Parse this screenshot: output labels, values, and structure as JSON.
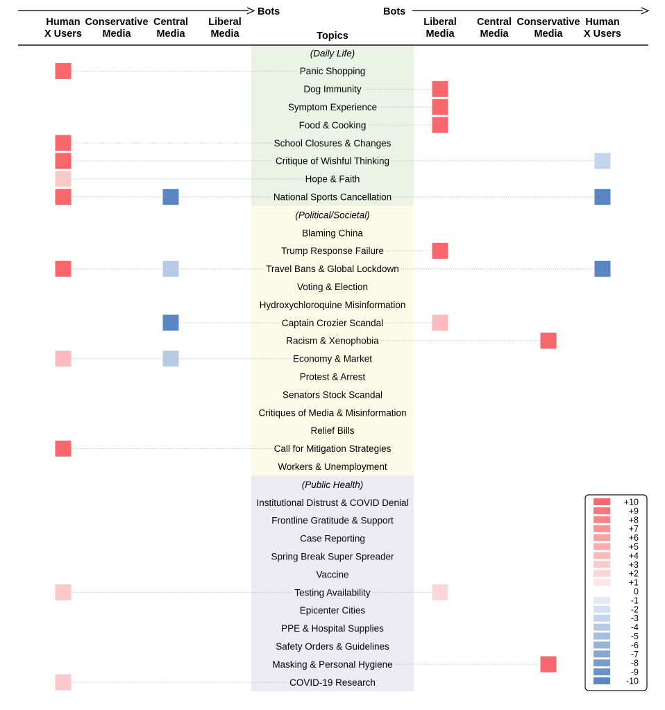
{
  "chart_data": {
    "type": "heatmap",
    "left_arrow_label": "Bots",
    "right_arrow_label": "Bots",
    "topics_header": "Topics",
    "left_columns": [
      "Human\nX Users",
      "Conservative\nMedia",
      "Central\nMedia",
      "Liberal\nMedia"
    ],
    "right_columns": [
      "Liberal\nMedia",
      "Central\nMedia",
      "Conservative\nMedia",
      "Human\nX Users"
    ],
    "sections": [
      {
        "name": "(Daily Life)",
        "color": "#eaf3e6",
        "topics": [
          {
            "name": "Panic Shopping",
            "left": [
              10,
              null,
              null,
              null
            ],
            "right": [
              null,
              null,
              null,
              null
            ]
          },
          {
            "name": "Dog Immunity",
            "left": [
              null,
              null,
              null,
              null
            ],
            "right": [
              10,
              null,
              null,
              null
            ]
          },
          {
            "name": "Symptom Experience",
            "left": [
              null,
              null,
              null,
              null
            ],
            "right": [
              10,
              null,
              null,
              null
            ]
          },
          {
            "name": "Food & Cooking",
            "left": [
              null,
              null,
              null,
              null
            ],
            "right": [
              10,
              null,
              null,
              null
            ]
          },
          {
            "name": "School Closures & Changes",
            "left": [
              10,
              null,
              null,
              null
            ],
            "right": [
              null,
              null,
              null,
              null
            ]
          },
          {
            "name": "Critique of Wishful Thinking",
            "left": [
              10,
              null,
              null,
              null
            ],
            "right": [
              null,
              null,
              null,
              -3
            ]
          },
          {
            "name": "Hope & Faith",
            "left": [
              3,
              null,
              null,
              null
            ],
            "right": [
              null,
              null,
              null,
              null
            ]
          },
          {
            "name": "National Sports Cancellation",
            "left": [
              10,
              null,
              -10,
              null
            ],
            "right": [
              null,
              null,
              null,
              -10
            ]
          }
        ]
      },
      {
        "name": "(Political/Societal)",
        "color": "#fbfbe8",
        "topics": [
          {
            "name": "Blaming China",
            "left": [
              null,
              null,
              null,
              null
            ],
            "right": [
              null,
              null,
              null,
              null
            ]
          },
          {
            "name": "Trump Response Failure",
            "left": [
              null,
              null,
              null,
              null
            ],
            "right": [
              10,
              null,
              null,
              null
            ]
          },
          {
            "name": "Travel Bans & Global Lockdown",
            "left": [
              10,
              null,
              -4,
              null
            ],
            "right": [
              null,
              null,
              null,
              -10
            ]
          },
          {
            "name": "Voting & Election",
            "left": [
              null,
              null,
              null,
              null
            ],
            "right": [
              null,
              null,
              null,
              null
            ]
          },
          {
            "name": "Hydroxychloroquine Misinformation",
            "left": [
              null,
              null,
              null,
              null
            ],
            "right": [
              null,
              null,
              null,
              null
            ]
          },
          {
            "name": "Captain Crozier Scandal",
            "left": [
              null,
              null,
              -10,
              null
            ],
            "right": [
              4,
              null,
              null,
              null
            ]
          },
          {
            "name": "Racism & Xenophobia",
            "left": [
              null,
              null,
              null,
              null
            ],
            "right": [
              null,
              null,
              10,
              null
            ]
          },
          {
            "name": "Economy & Market",
            "left": [
              4,
              null,
              -4,
              null
            ],
            "right": [
              null,
              null,
              null,
              null
            ]
          },
          {
            "name": "Protest & Arrest",
            "left": [
              null,
              null,
              null,
              null
            ],
            "right": [
              null,
              null,
              null,
              null
            ]
          },
          {
            "name": "Senators Stock Scandal",
            "left": [
              null,
              null,
              null,
              null
            ],
            "right": [
              null,
              null,
              null,
              null
            ]
          },
          {
            "name": "Critiques of Media & Misinformation",
            "left": [
              null,
              null,
              null,
              null
            ],
            "right": [
              null,
              null,
              null,
              null
            ]
          },
          {
            "name": "Relief Bills",
            "left": [
              null,
              null,
              null,
              null
            ],
            "right": [
              null,
              null,
              null,
              null
            ]
          },
          {
            "name": "Call for Mitigation Strategies",
            "left": [
              10,
              null,
              null,
              null
            ],
            "right": [
              null,
              null,
              null,
              null
            ]
          },
          {
            "name": "Workers & Unemployment",
            "left": [
              null,
              null,
              null,
              null
            ],
            "right": [
              null,
              null,
              null,
              null
            ]
          }
        ]
      },
      {
        "name": "(Public Health)",
        "color": "#eceaf3",
        "topics": [
          {
            "name": "Institutional Distrust & COVID Denial",
            "left": [
              null,
              null,
              null,
              null
            ],
            "right": [
              null,
              null,
              null,
              null
            ]
          },
          {
            "name": "Frontline Gratitude & Support",
            "left": [
              null,
              null,
              null,
              null
            ],
            "right": [
              null,
              null,
              null,
              null
            ]
          },
          {
            "name": "Case Reporting",
            "left": [
              null,
              null,
              null,
              null
            ],
            "right": [
              null,
              null,
              null,
              null
            ]
          },
          {
            "name": "Spring Break Super Spreader",
            "left": [
              null,
              null,
              null,
              null
            ],
            "right": [
              null,
              null,
              null,
              null
            ]
          },
          {
            "name": "Vaccine",
            "left": [
              null,
              null,
              null,
              null
            ],
            "right": [
              null,
              null,
              null,
              null
            ]
          },
          {
            "name": "Testing Availability",
            "left": [
              3,
              null,
              null,
              null
            ],
            "right": [
              2,
              null,
              null,
              null
            ]
          },
          {
            "name": "Epicenter Cities",
            "left": [
              null,
              null,
              null,
              null
            ],
            "right": [
              null,
              null,
              null,
              null
            ]
          },
          {
            "name": "PPE & Hospital Supplies",
            "left": [
              null,
              null,
              null,
              null
            ],
            "right": [
              null,
              null,
              null,
              null
            ]
          },
          {
            "name": "Safety Orders & Guidelines",
            "left": [
              null,
              null,
              null,
              null
            ],
            "right": [
              null,
              null,
              null,
              null
            ]
          },
          {
            "name": "Masking & Personal Hygiene",
            "left": [
              null,
              null,
              null,
              null
            ],
            "right": [
              null,
              null,
              10,
              null
            ]
          },
          {
            "name": "COVID-19 Research",
            "left": [
              3,
              null,
              null,
              null
            ],
            "right": [
              null,
              null,
              null,
              null
            ]
          }
        ]
      }
    ],
    "legend": {
      "labels": [
        "+10",
        "+9",
        "+8",
        "+7",
        "+6",
        "+5",
        "+4",
        "+3",
        "+2",
        "+1",
        "0",
        "-1",
        "-2",
        "-3",
        "-4",
        "-5",
        "-6",
        "-7",
        "-8",
        "-9",
        "-10"
      ],
      "values": [
        10,
        9,
        8,
        7,
        6,
        5,
        4,
        3,
        2,
        1,
        0,
        -1,
        -2,
        -3,
        -4,
        -5,
        -6,
        -7,
        -8,
        -9,
        -10
      ],
      "placement": "bottom-right"
    },
    "colors": {
      "positive": "#f7676c",
      "negative": "#5b86c4",
      "connector": "#aaaaaa",
      "axis": "#111111"
    }
  }
}
